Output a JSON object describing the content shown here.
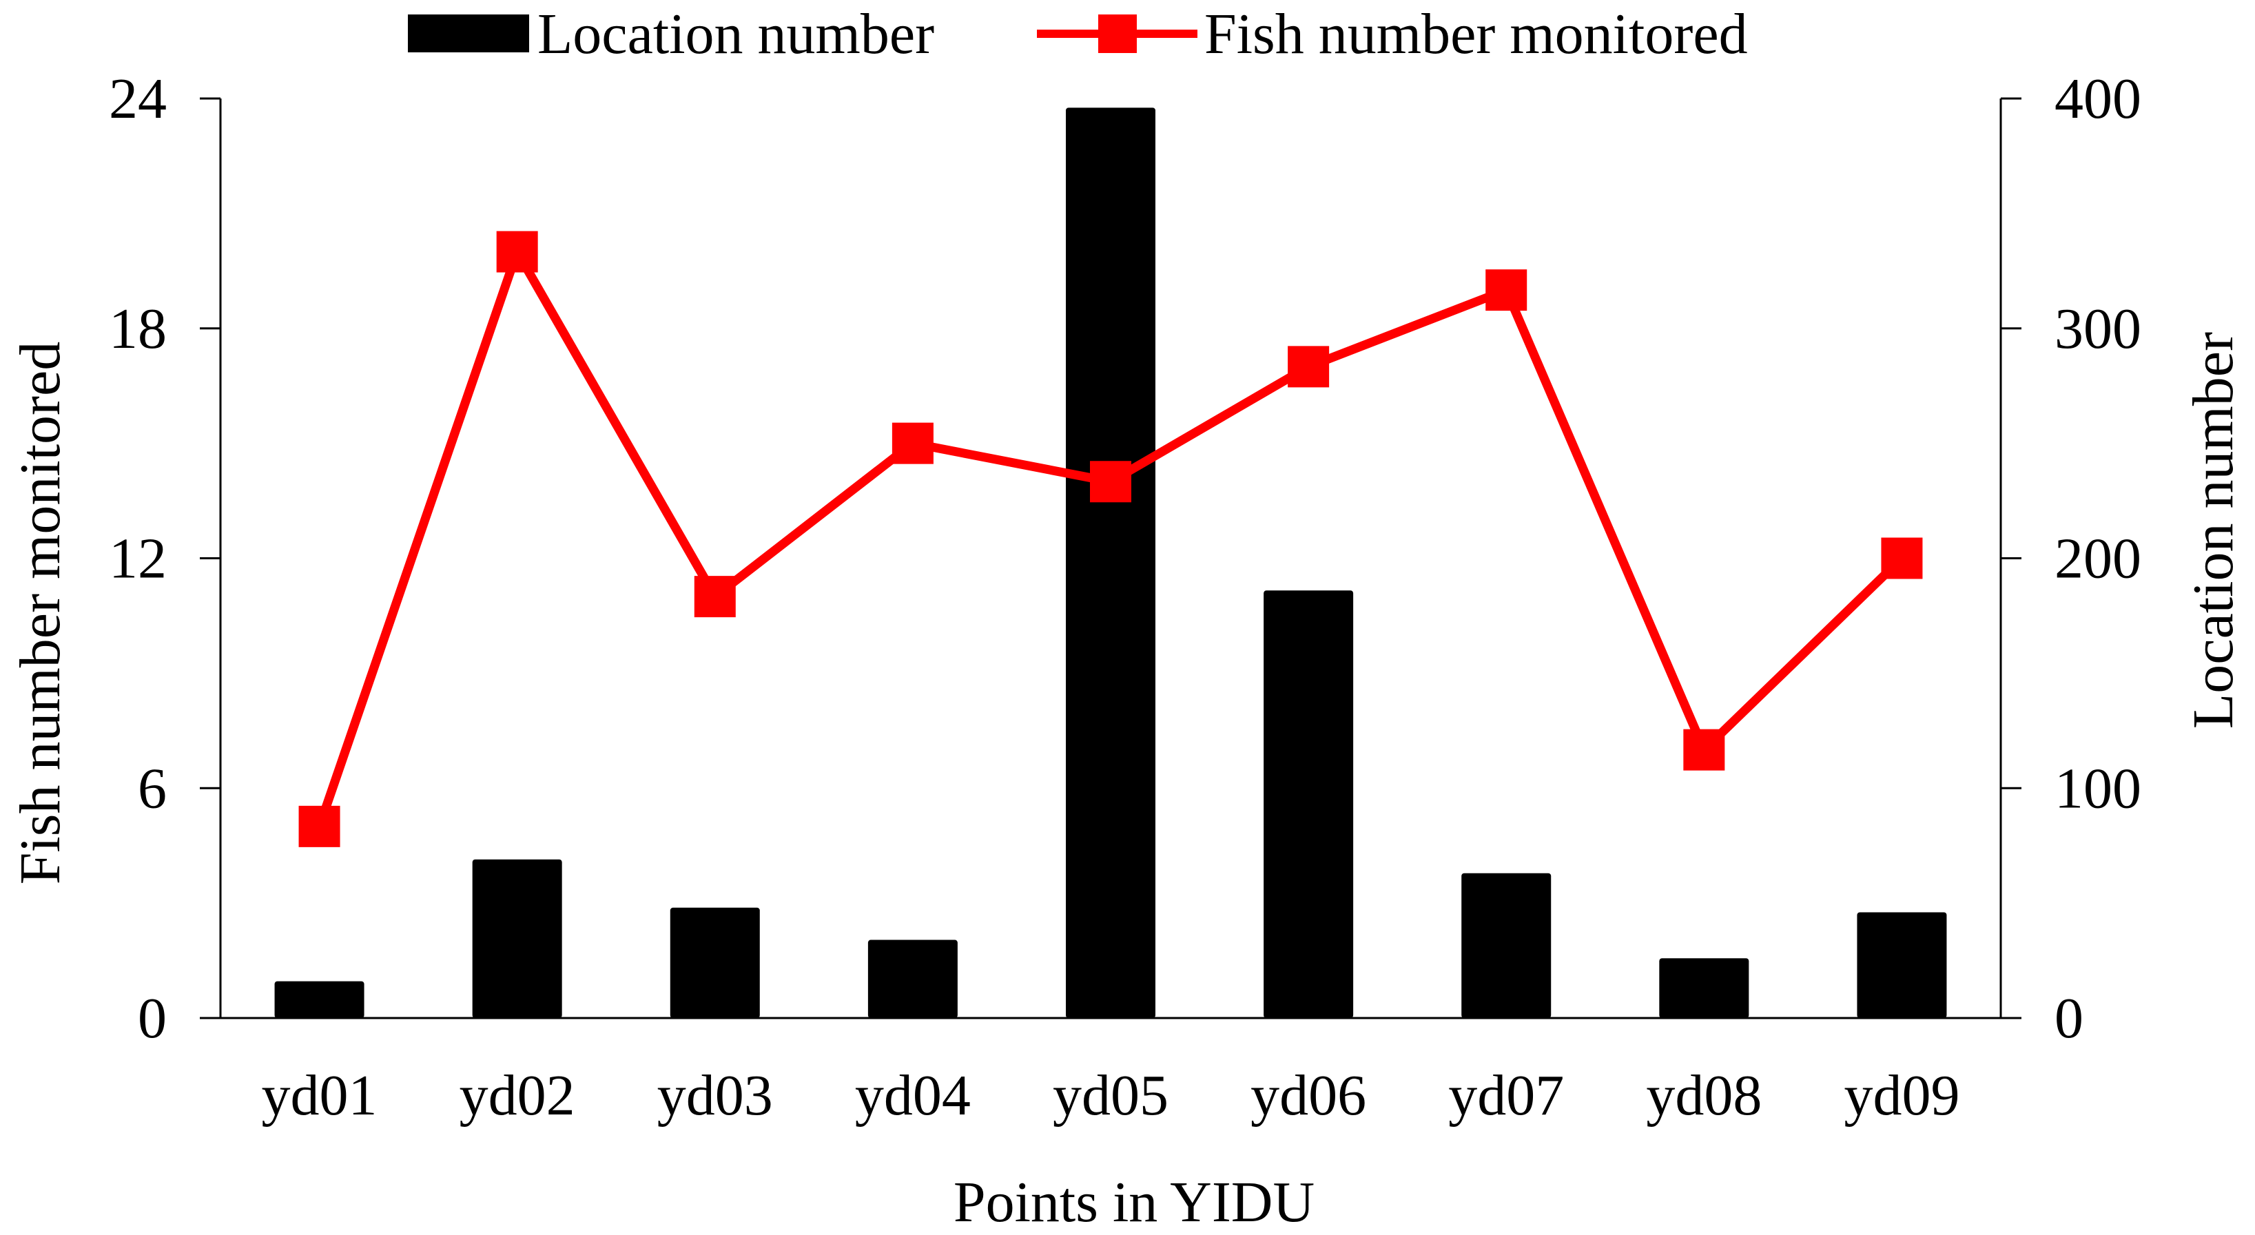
{
  "chart_data": {
    "type": "bar",
    "xlabel": "Points in YIDU",
    "categories": [
      "yd01",
      "yd02",
      "yd03",
      "yd04",
      "yd05",
      "yd06",
      "yd07",
      "yd08",
      "yd09"
    ],
    "left_axis": {
      "label": "Fish number monitored",
      "ylim": [
        0,
        24
      ],
      "ticks": [
        "0",
        "6",
        "12",
        "18",
        "24"
      ]
    },
    "right_axis": {
      "label": "Location number",
      "ylim": [
        0,
        400
      ],
      "ticks": [
        "0",
        "100",
        "200",
        "300",
        "400"
      ]
    },
    "series": [
      {
        "name": "Location number",
        "type": "bar",
        "axis": "right",
        "color": "#000000",
        "values": [
          16,
          69,
          48,
          34,
          396,
          186,
          63,
          26,
          46
        ]
      },
      {
        "name": "Fish number monitored",
        "type": "line",
        "axis": "left",
        "color": "#ff0000",
        "marker": "square",
        "values": [
          5,
          20,
          11,
          15,
          14,
          17,
          19,
          7,
          12
        ]
      }
    ],
    "legend": {
      "position": "top-center",
      "entries": [
        "Location number",
        "Fish number monitored"
      ]
    },
    "grid": false
  }
}
